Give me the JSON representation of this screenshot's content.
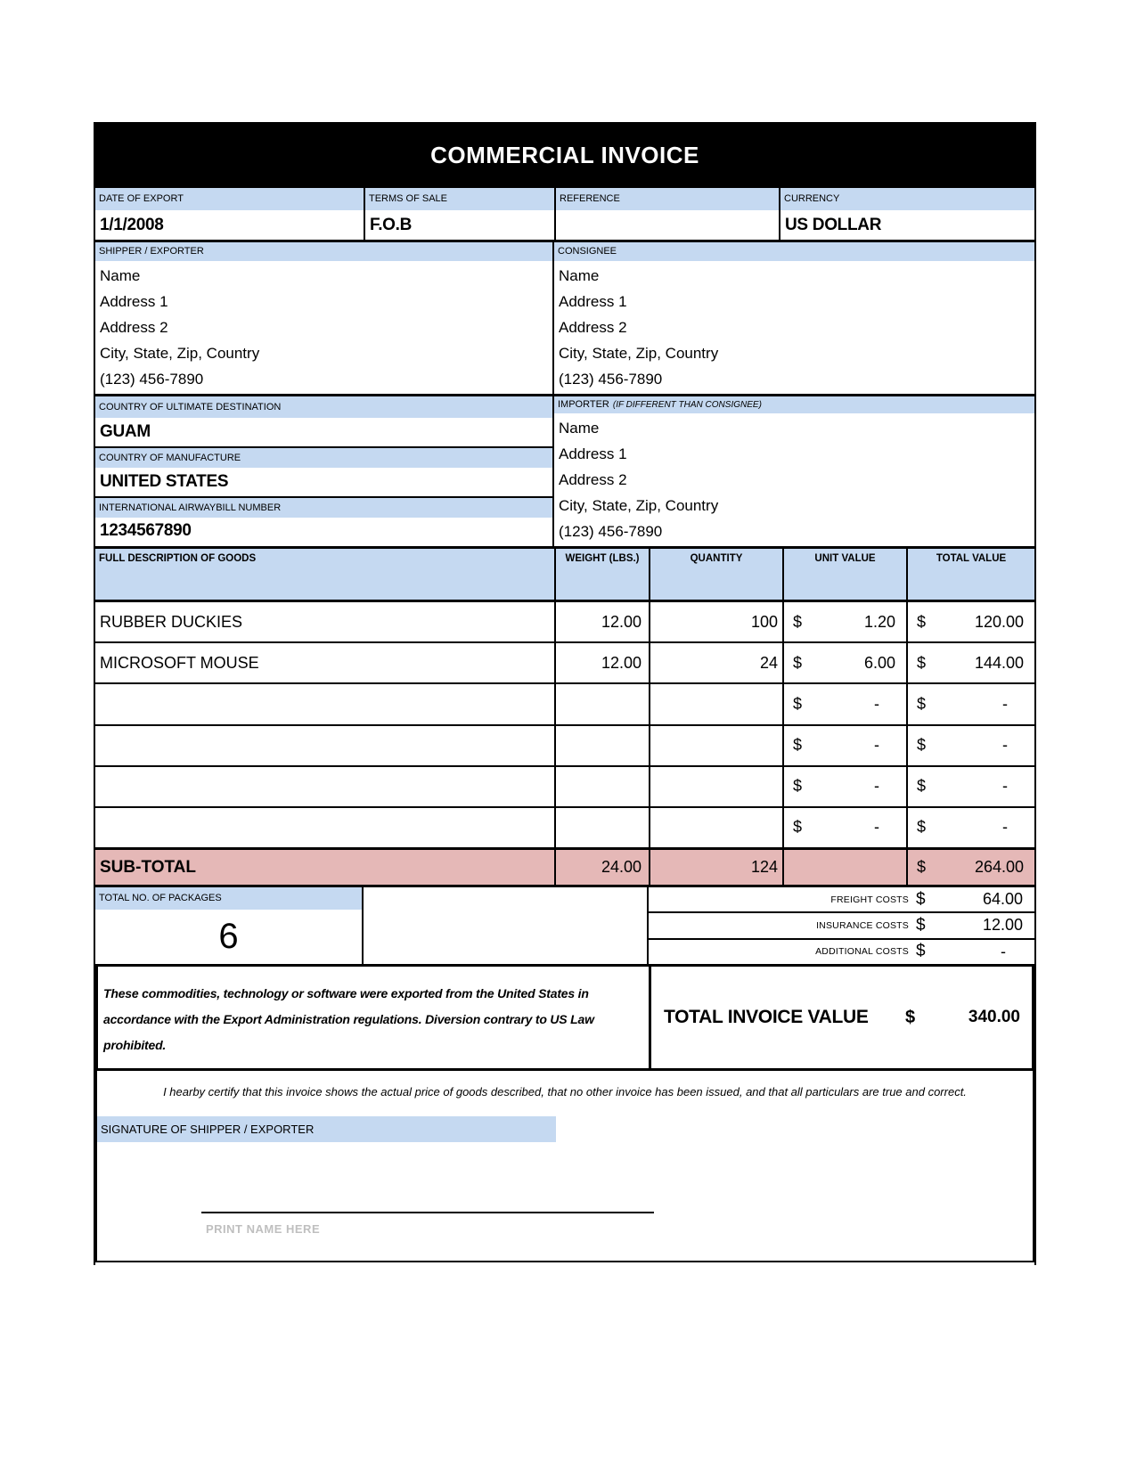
{
  "title": "COMMERCIAL INVOICE",
  "colors": {
    "title_bg": "#000000",
    "label_bg": "#c5d9f1",
    "subtotal_bg": "#e5b8b7",
    "print_name_color": "#bfbfbf"
  },
  "meta": {
    "date_of_export": {
      "label": "DATE OF EXPORT",
      "value": "1/1/2008"
    },
    "terms_of_sale": {
      "label": "TERMS OF SALE",
      "value": "F.O.B"
    },
    "reference": {
      "label": "REFERENCE",
      "value": ""
    },
    "currency": {
      "label": "CURRENCY",
      "value": "US DOLLAR"
    }
  },
  "shipper": {
    "label": "SHIPPER / EXPORTER",
    "lines": [
      "Name",
      "Address 1",
      "Address 2",
      "City, State, Zip, Country",
      "(123) 456-7890"
    ]
  },
  "consignee": {
    "label": "CONSIGNEE",
    "lines": [
      "Name",
      "Address 1",
      "Address 2",
      "City, State, Zip, Country",
      "(123) 456-7890"
    ]
  },
  "destination": {
    "label": "COUNTRY OF ULTIMATE DESTINATION",
    "value": "GUAM"
  },
  "manufacture": {
    "label": "COUNTRY OF MANUFACTURE",
    "value": "UNITED STATES"
  },
  "airwaybill": {
    "label": "INTERNATIONAL AIRWAYBILL NUMBER",
    "value": "1234567890"
  },
  "importer": {
    "label": "IMPORTER",
    "label_note": "(IF DIFFERENT THAN CONSIGNEE)",
    "lines": [
      "Name",
      "Address 1",
      "Address 2",
      "City, State, Zip, Country",
      "(123) 456-7890"
    ]
  },
  "goods": {
    "headers": {
      "description": "FULL DESCRIPTION OF GOODS",
      "weight": "WEIGHT (LBS.)",
      "quantity": "QUANTITY",
      "unit_value": "UNIT VALUE",
      "total_value": "TOTAL VALUE"
    },
    "rows": [
      {
        "description": "RUBBER DUCKIES",
        "weight": "12.00",
        "quantity": "100",
        "unit_currency": "$",
        "unit_value": "1.20",
        "total_currency": "$",
        "total_value": "120.00"
      },
      {
        "description": "MICROSOFT MOUSE",
        "weight": "12.00",
        "quantity": "24",
        "unit_currency": "$",
        "unit_value": "6.00",
        "total_currency": "$",
        "total_value": "144.00"
      },
      {
        "description": "",
        "weight": "",
        "quantity": "",
        "unit_currency": "$",
        "unit_value": "-",
        "total_currency": "$",
        "total_value": "-"
      },
      {
        "description": "",
        "weight": "",
        "quantity": "",
        "unit_currency": "$",
        "unit_value": "-",
        "total_currency": "$",
        "total_value": "-"
      },
      {
        "description": "",
        "weight": "",
        "quantity": "",
        "unit_currency": "$",
        "unit_value": "-",
        "total_currency": "$",
        "total_value": "-"
      },
      {
        "description": "",
        "weight": "",
        "quantity": "",
        "unit_currency": "$",
        "unit_value": "-",
        "total_currency": "$",
        "total_value": "-"
      }
    ],
    "subtotal": {
      "label": "SUB-TOTAL",
      "weight": "24.00",
      "quantity": "124",
      "unit_value": "",
      "total_currency": "$",
      "total_value": "264.00"
    }
  },
  "packages": {
    "label": "TOTAL NO. OF PACKAGES",
    "value": "6"
  },
  "costs": [
    {
      "label": "FREIGHT COSTS",
      "currency": "$",
      "value": "64.00"
    },
    {
      "label": "INSURANCE COSTS",
      "currency": "$",
      "value": "12.00"
    },
    {
      "label": "ADDITIONAL COSTS",
      "currency": "$",
      "value": "-"
    }
  ],
  "export_statement": "These commodities, technology or software were exported from the United States in accordance with the Export Administration regulations.  Diversion contrary to US Law prohibited.",
  "total": {
    "label": "TOTAL INVOICE VALUE",
    "currency": "$",
    "value": "340.00"
  },
  "certification": "I hearby certify that this invoice shows the actual price of goods described, that no other invoice has been issued, and that all particulars are true and correct.",
  "signature": {
    "label": "SIGNATURE OF SHIPPER / EXPORTER",
    "print_name": "PRINT NAME HERE"
  }
}
